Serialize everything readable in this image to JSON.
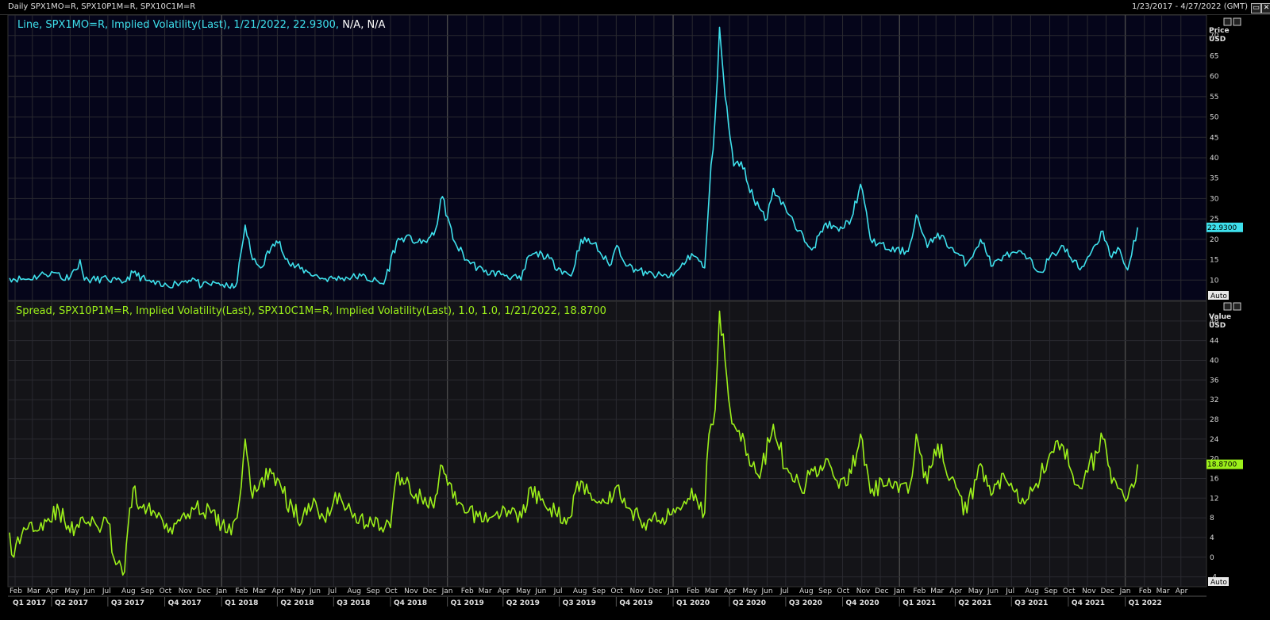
{
  "header": {
    "left": "Daily SPX1MO=R, SPX10P1M=R, SPX10C1M=R",
    "right": "1/23/2017 - 4/27/2022 (GMT)"
  },
  "window_buttons": {
    "restore": "▭",
    "close": "✕"
  },
  "panels": [
    {
      "legend_prefix": "Line, SPX1MO=R, Implied Volatility(Last), 1/21/2022, 22.9300,",
      "legend_suffix": " N/A, N/A",
      "axis_title": "Price",
      "axis_unit": "USD",
      "last_value_label": "22.9300",
      "auto_label": "Auto"
    },
    {
      "legend_prefix": "Spread, SPX10P1M=R, Implied Volatility(Last), SPX10C1M=R, Implied Volatility(Last),  1.0, 1.0, 1/21/2022, 18.8700",
      "legend_suffix": "",
      "axis_title": "Value",
      "axis_unit": "USD",
      "last_value_label": "18.8700",
      "auto_label": "Auto"
    }
  ],
  "x_axis": {
    "months": [
      "Feb",
      "Mar",
      "Apr",
      "May",
      "Jun",
      "Jul",
      "Aug",
      "Sep",
      "Oct",
      "Nov",
      "Dec",
      "Jan",
      "Feb",
      "Mar",
      "Apr",
      "May",
      "Jun",
      "Jul",
      "Aug",
      "Sep",
      "Oct",
      "Nov",
      "Dec",
      "Jan",
      "Feb",
      "Mar",
      "Apr",
      "May",
      "Jun",
      "Jul",
      "Aug",
      "Sep",
      "Oct",
      "Nov",
      "Dec",
      "Jan",
      "Feb",
      "Mar",
      "Apr",
      "May",
      "Jun",
      "Jul",
      "Aug",
      "Sep",
      "Oct",
      "Nov",
      "Dec",
      "Jan",
      "Feb",
      "Mar",
      "Apr",
      "May",
      "Jun",
      "Jul",
      "Aug",
      "Sep",
      "Oct",
      "Nov",
      "Dec",
      "Jan",
      "Feb",
      "Mar",
      "Apr"
    ],
    "quarters": [
      "Q1 2017",
      "Q2 2017",
      "Q3 2017",
      "Q4 2017",
      "Q1 2018",
      "Q2 2018",
      "Q3 2018",
      "Q4 2018",
      "Q1 2019",
      "Q2 2019",
      "Q3 2019",
      "Q4 2019",
      "Q1 2020",
      "Q2 2020",
      "Q3 2020",
      "Q4 2020",
      "Q1 2021",
      "Q2 2021",
      "Q3 2021",
      "Q4 2021",
      "Q1 2022"
    ]
  },
  "chart_data": [
    {
      "type": "line",
      "series": [
        {
          "name": "SPX1MO=R, Implied Volatility(Last)",
          "color": "#3ee0ec"
        }
      ],
      "ylabel": "Price USD",
      "ylim": [
        5,
        75
      ],
      "yticks": [
        10,
        15,
        20,
        25,
        30,
        35,
        40,
        45,
        50,
        55,
        60,
        65,
        70
      ],
      "x_range": [
        "2017-01-23",
        "2022-04-27"
      ],
      "grid": true,
      "points": [
        [
          "2017-01-23",
          10.5
        ],
        [
          "2017-02-20",
          10.2
        ],
        [
          "2017-03-20",
          11.5
        ],
        [
          "2017-04-13",
          11.8
        ],
        [
          "2017-04-20",
          10.0
        ],
        [
          "2017-05-10",
          12.5
        ],
        [
          "2017-05-17",
          15.0
        ],
        [
          "2017-05-24",
          10.0
        ],
        [
          "2017-06-30",
          10.3
        ],
        [
          "2017-07-24",
          9.3
        ],
        [
          "2017-08-11",
          11.8
        ],
        [
          "2017-08-31",
          10.0
        ],
        [
          "2017-09-25",
          8.5
        ],
        [
          "2017-10-20",
          9.2
        ],
        [
          "2017-11-15",
          10.5
        ],
        [
          "2017-11-30",
          8.5
        ],
        [
          "2017-12-27",
          9.3
        ],
        [
          "2018-01-15",
          8.0
        ],
        [
          "2018-01-26",
          9.5
        ],
        [
          "2018-02-05",
          20.0
        ],
        [
          "2018-02-08",
          23.5
        ],
        [
          "2018-02-20",
          15.0
        ],
        [
          "2018-03-05",
          13.0
        ],
        [
          "2018-03-22",
          18.0
        ],
        [
          "2018-04-05",
          19.5
        ],
        [
          "2018-04-20",
          14.0
        ],
        [
          "2018-05-20",
          12.0
        ],
        [
          "2018-06-15",
          10.3
        ],
        [
          "2018-07-15",
          10.5
        ],
        [
          "2018-08-15",
          11.0
        ],
        [
          "2018-09-20",
          9.0
        ],
        [
          "2018-10-11",
          19.5
        ],
        [
          "2018-10-25",
          20.5
        ],
        [
          "2018-11-20",
          19.0
        ],
        [
          "2018-12-10",
          21.0
        ],
        [
          "2018-12-24",
          30.5
        ],
        [
          "2019-01-10",
          20.0
        ],
        [
          "2019-02-01",
          15.0
        ],
        [
          "2019-03-01",
          12.0
        ],
        [
          "2019-04-01",
          11.5
        ],
        [
          "2019-04-30",
          10.0
        ],
        [
          "2019-05-13",
          16.0
        ],
        [
          "2019-06-03",
          16.5
        ],
        [
          "2019-06-30",
          13.0
        ],
        [
          "2019-07-20",
          11.0
        ],
        [
          "2019-08-05",
          20.0
        ],
        [
          "2019-08-26",
          19.0
        ],
        [
          "2019-09-20",
          13.5
        ],
        [
          "2019-10-02",
          18.5
        ],
        [
          "2019-10-20",
          13.5
        ],
        [
          "2019-11-20",
          11.5
        ],
        [
          "2019-12-15",
          11.0
        ],
        [
          "2020-01-01",
          11.0
        ],
        [
          "2020-01-31",
          16.5
        ],
        [
          "2020-02-21",
          13.0
        ],
        [
          "2020-02-28",
          30.0
        ],
        [
          "2020-03-09",
          50.0
        ],
        [
          "2020-03-16",
          72.0
        ],
        [
          "2020-03-25",
          55.0
        ],
        [
          "2020-04-08",
          38.0
        ],
        [
          "2020-04-20",
          39.0
        ],
        [
          "2020-05-10",
          30.0
        ],
        [
          "2020-06-01",
          25.0
        ],
        [
          "2020-06-11",
          32.5
        ],
        [
          "2020-06-30",
          28.0
        ],
        [
          "2020-07-20",
          22.0
        ],
        [
          "2020-08-15",
          18.0
        ],
        [
          "2020-09-04",
          24.0
        ],
        [
          "2020-09-25",
          22.0
        ],
        [
          "2020-10-15",
          25.0
        ],
        [
          "2020-10-30",
          33.5
        ],
        [
          "2020-11-15",
          20.0
        ],
        [
          "2020-12-15",
          17.5
        ],
        [
          "2021-01-15",
          17.0
        ],
        [
          "2021-01-28",
          26.0
        ],
        [
          "2021-02-15",
          18.0
        ],
        [
          "2021-03-04",
          21.5
        ],
        [
          "2021-03-25",
          18.0
        ],
        [
          "2021-04-20",
          14.0
        ],
        [
          "2021-05-12",
          20.0
        ],
        [
          "2021-06-01",
          13.5
        ],
        [
          "2021-06-18",
          16.0
        ],
        [
          "2021-07-19",
          16.5
        ],
        [
          "2021-08-15",
          12.0
        ],
        [
          "2021-09-20",
          18.5
        ],
        [
          "2021-10-20",
          12.5
        ],
        [
          "2021-11-26",
          22.0
        ],
        [
          "2021-12-10",
          15.5
        ],
        [
          "2021-12-20",
          18.0
        ],
        [
          "2022-01-05",
          12.5
        ],
        [
          "2022-01-21",
          22.93
        ]
      ]
    },
    {
      "type": "line",
      "series": [
        {
          "name": "Spread, SPX10P1M=R - SPX10C1M=R",
          "color": "#9cf01a"
        }
      ],
      "ylabel": "Value USD",
      "ylim": [
        -6,
        52
      ],
      "yticks": [
        -4,
        0,
        4,
        8,
        12,
        16,
        20,
        24,
        28,
        32,
        36,
        40,
        44,
        48
      ],
      "x_range": [
        "2017-01-23",
        "2022-04-27"
      ],
      "grid": true,
      "points": [
        [
          "2017-01-23",
          5.0
        ],
        [
          "2017-01-30",
          0.0
        ],
        [
          "2017-02-15",
          6.0
        ],
        [
          "2017-03-15",
          7.0
        ],
        [
          "2017-04-13",
          9.5
        ],
        [
          "2017-05-01",
          5.0
        ],
        [
          "2017-05-18",
          8.0
        ],
        [
          "2017-06-15",
          6.0
        ],
        [
          "2017-07-01",
          7.0
        ],
        [
          "2017-07-14",
          -1.5
        ],
        [
          "2017-07-28",
          -3.0
        ],
        [
          "2017-08-11",
          14.0
        ],
        [
          "2017-08-25",
          10.0
        ],
        [
          "2017-09-15",
          9.0
        ],
        [
          "2017-10-10",
          6.0
        ],
        [
          "2017-11-01",
          9.0
        ],
        [
          "2017-11-20",
          10.0
        ],
        [
          "2017-12-15",
          9.0
        ],
        [
          "2018-01-10",
          5.0
        ],
        [
          "2018-01-26",
          8.0
        ],
        [
          "2018-02-05",
          20.0
        ],
        [
          "2018-02-08",
          24.0
        ],
        [
          "2018-02-20",
          12.0
        ],
        [
          "2018-03-20",
          18.0
        ],
        [
          "2018-04-10",
          13.0
        ],
        [
          "2018-05-10",
          7.0
        ],
        [
          "2018-05-30",
          12.0
        ],
        [
          "2018-06-15",
          8.0
        ],
        [
          "2018-07-10",
          13.0
        ],
        [
          "2018-08-01",
          8.0
        ],
        [
          "2018-09-01",
          7.0
        ],
        [
          "2018-10-01",
          6.0
        ],
        [
          "2018-10-11",
          17.0
        ],
        [
          "2018-10-25",
          15.0
        ],
        [
          "2018-11-20",
          12.0
        ],
        [
          "2018-12-10",
          10.0
        ],
        [
          "2018-12-24",
          18.5
        ],
        [
          "2019-01-10",
          12.0
        ],
        [
          "2019-02-01",
          9.0
        ],
        [
          "2019-03-10",
          8.0
        ],
        [
          "2019-04-10",
          9.5
        ],
        [
          "2019-05-01",
          8.0
        ],
        [
          "2019-05-13",
          14.0
        ],
        [
          "2019-06-10",
          10.0
        ],
        [
          "2019-07-15",
          8.0
        ],
        [
          "2019-08-05",
          15.5
        ],
        [
          "2019-08-20",
          13.0
        ],
        [
          "2019-09-15",
          11.0
        ],
        [
          "2019-10-02",
          14.5
        ],
        [
          "2019-10-20",
          10.0
        ],
        [
          "2019-11-15",
          7.0
        ],
        [
          "2019-12-15",
          8.0
        ],
        [
          "2020-01-10",
          10.0
        ],
        [
          "2020-01-31",
          14.0
        ],
        [
          "2020-02-21",
          9.0
        ],
        [
          "2020-02-28",
          25.0
        ],
        [
          "2020-03-09",
          30.0
        ],
        [
          "2020-03-16",
          50.0
        ],
        [
          "2020-03-25",
          40.0
        ],
        [
          "2020-04-08",
          27.0
        ],
        [
          "2020-05-01",
          21.0
        ],
        [
          "2020-05-20",
          16.0
        ],
        [
          "2020-06-11",
          27.0
        ],
        [
          "2020-06-30",
          18.0
        ],
        [
          "2020-07-25",
          14.0
        ],
        [
          "2020-09-04",
          20.0
        ],
        [
          "2020-09-25",
          14.0
        ],
        [
          "2020-10-15",
          17.0
        ],
        [
          "2020-10-30",
          25.0
        ],
        [
          "2020-11-15",
          13.0
        ],
        [
          "2020-12-15",
          16.0
        ],
        [
          "2021-01-15",
          13.0
        ],
        [
          "2021-01-28",
          25.0
        ],
        [
          "2021-02-15",
          15.0
        ],
        [
          "2021-03-04",
          23.0
        ],
        [
          "2021-03-25",
          16.0
        ],
        [
          "2021-04-20",
          9.0
        ],
        [
          "2021-05-12",
          19.0
        ],
        [
          "2021-06-01",
          13.0
        ],
        [
          "2021-06-18",
          17.0
        ],
        [
          "2021-07-19",
          12.0
        ],
        [
          "2021-08-10",
          15.0
        ],
        [
          "2021-09-01",
          21.0
        ],
        [
          "2021-09-20",
          23.0
        ],
        [
          "2021-10-20",
          14.0
        ],
        [
          "2021-11-26",
          24.0
        ],
        [
          "2021-12-10",
          15.0
        ],
        [
          "2021-12-20",
          14.0
        ],
        [
          "2022-01-05",
          12.0
        ],
        [
          "2022-01-21",
          18.87
        ]
      ]
    }
  ]
}
